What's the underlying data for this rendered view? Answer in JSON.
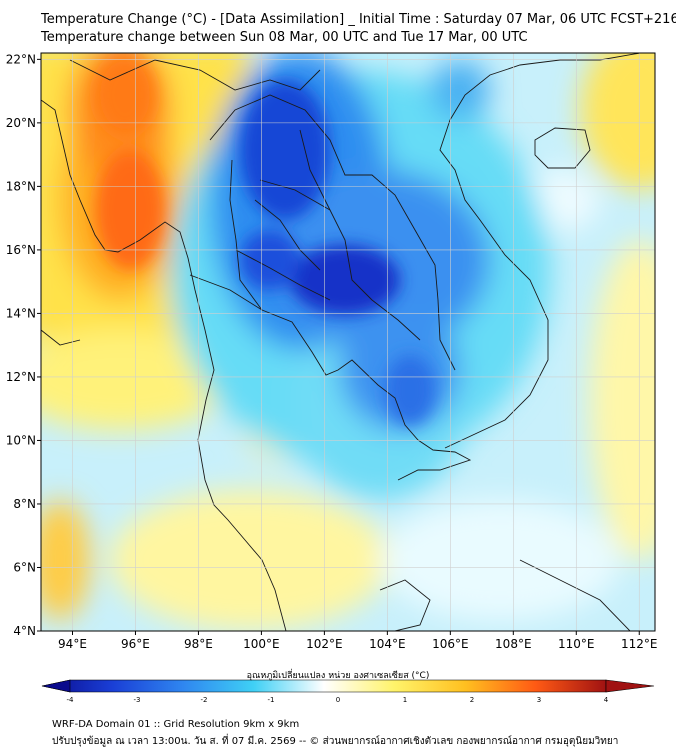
{
  "title_line1": "Temperature Change (°C) - [Data Assimilation] _ Initial Time : Saturday 07 Mar, 06 UTC FCST+216",
  "title_line2": "Temperature change between Sun 08 Mar, 00 UTC and Tue 17 Mar, 00 UTC",
  "map": {
    "lon_range": [
      93,
      112.5
    ],
    "lat_range": [
      4,
      22.2
    ],
    "lon_ticks": [
      {
        "value": 94,
        "label": "94°E"
      },
      {
        "value": 96,
        "label": "96°E"
      },
      {
        "value": 98,
        "label": "98°E"
      },
      {
        "value": 100,
        "label": "100°E"
      },
      {
        "value": 102,
        "label": "102°E"
      },
      {
        "value": 104,
        "label": "104°E"
      },
      {
        "value": 106,
        "label": "106°E"
      },
      {
        "value": 108,
        "label": "108°E"
      },
      {
        "value": 110,
        "label": "110°E"
      },
      {
        "value": 112,
        "label": "112°E"
      }
    ],
    "lat_ticks": [
      {
        "value": 22,
        "label": "22°N"
      },
      {
        "value": 20,
        "label": "20°N"
      },
      {
        "value": 18,
        "label": "18°N"
      },
      {
        "value": 16,
        "label": "16°N"
      },
      {
        "value": 14,
        "label": "14°N"
      },
      {
        "value": 12,
        "label": "12°N"
      },
      {
        "value": 10,
        "label": "10°N"
      },
      {
        "value": 8,
        "label": "8°N"
      },
      {
        "value": 6,
        "label": "6°N"
      },
      {
        "value": 4,
        "label": "4°N"
      }
    ],
    "gridlines": true
  },
  "colorbar": {
    "label": "อุณหภูมิเปลี่ยนแปลง หน่วย องศาเซลเซียส (°C)",
    "min": -4,
    "max": 4,
    "ticks": [
      {
        "value": -4,
        "label": "-4"
      },
      {
        "value": -3,
        "label": "-3"
      },
      {
        "value": -2,
        "label": "-2"
      },
      {
        "value": -1,
        "label": "-1"
      },
      {
        "value": 0,
        "label": "0"
      },
      {
        "value": 1,
        "label": "1"
      },
      {
        "value": 2,
        "label": "2"
      },
      {
        "value": 3,
        "label": "3"
      },
      {
        "value": 4,
        "label": "4"
      }
    ],
    "colors": [
      "#0a0a8c",
      "#1a3fd6",
      "#2f86f0",
      "#3fd0f5",
      "#ffffff",
      "#fff36a",
      "#ffc020",
      "#ff5a14",
      "#a01212"
    ]
  },
  "footer_line1": "WRF-DA Domain 01 :: Grid Resolution 9km x 9km",
  "footer_line2": "ปรับปรุงข้อมูล ณ เวลา 13:00น. วัน ส. ที่ 07 มี.ค. 2569 -- © ส่วนพยากรณ์อากาศเชิงตัวเลข กองพยากรณ์อากาศ กรมอุตุนิยมวิทยา"
}
